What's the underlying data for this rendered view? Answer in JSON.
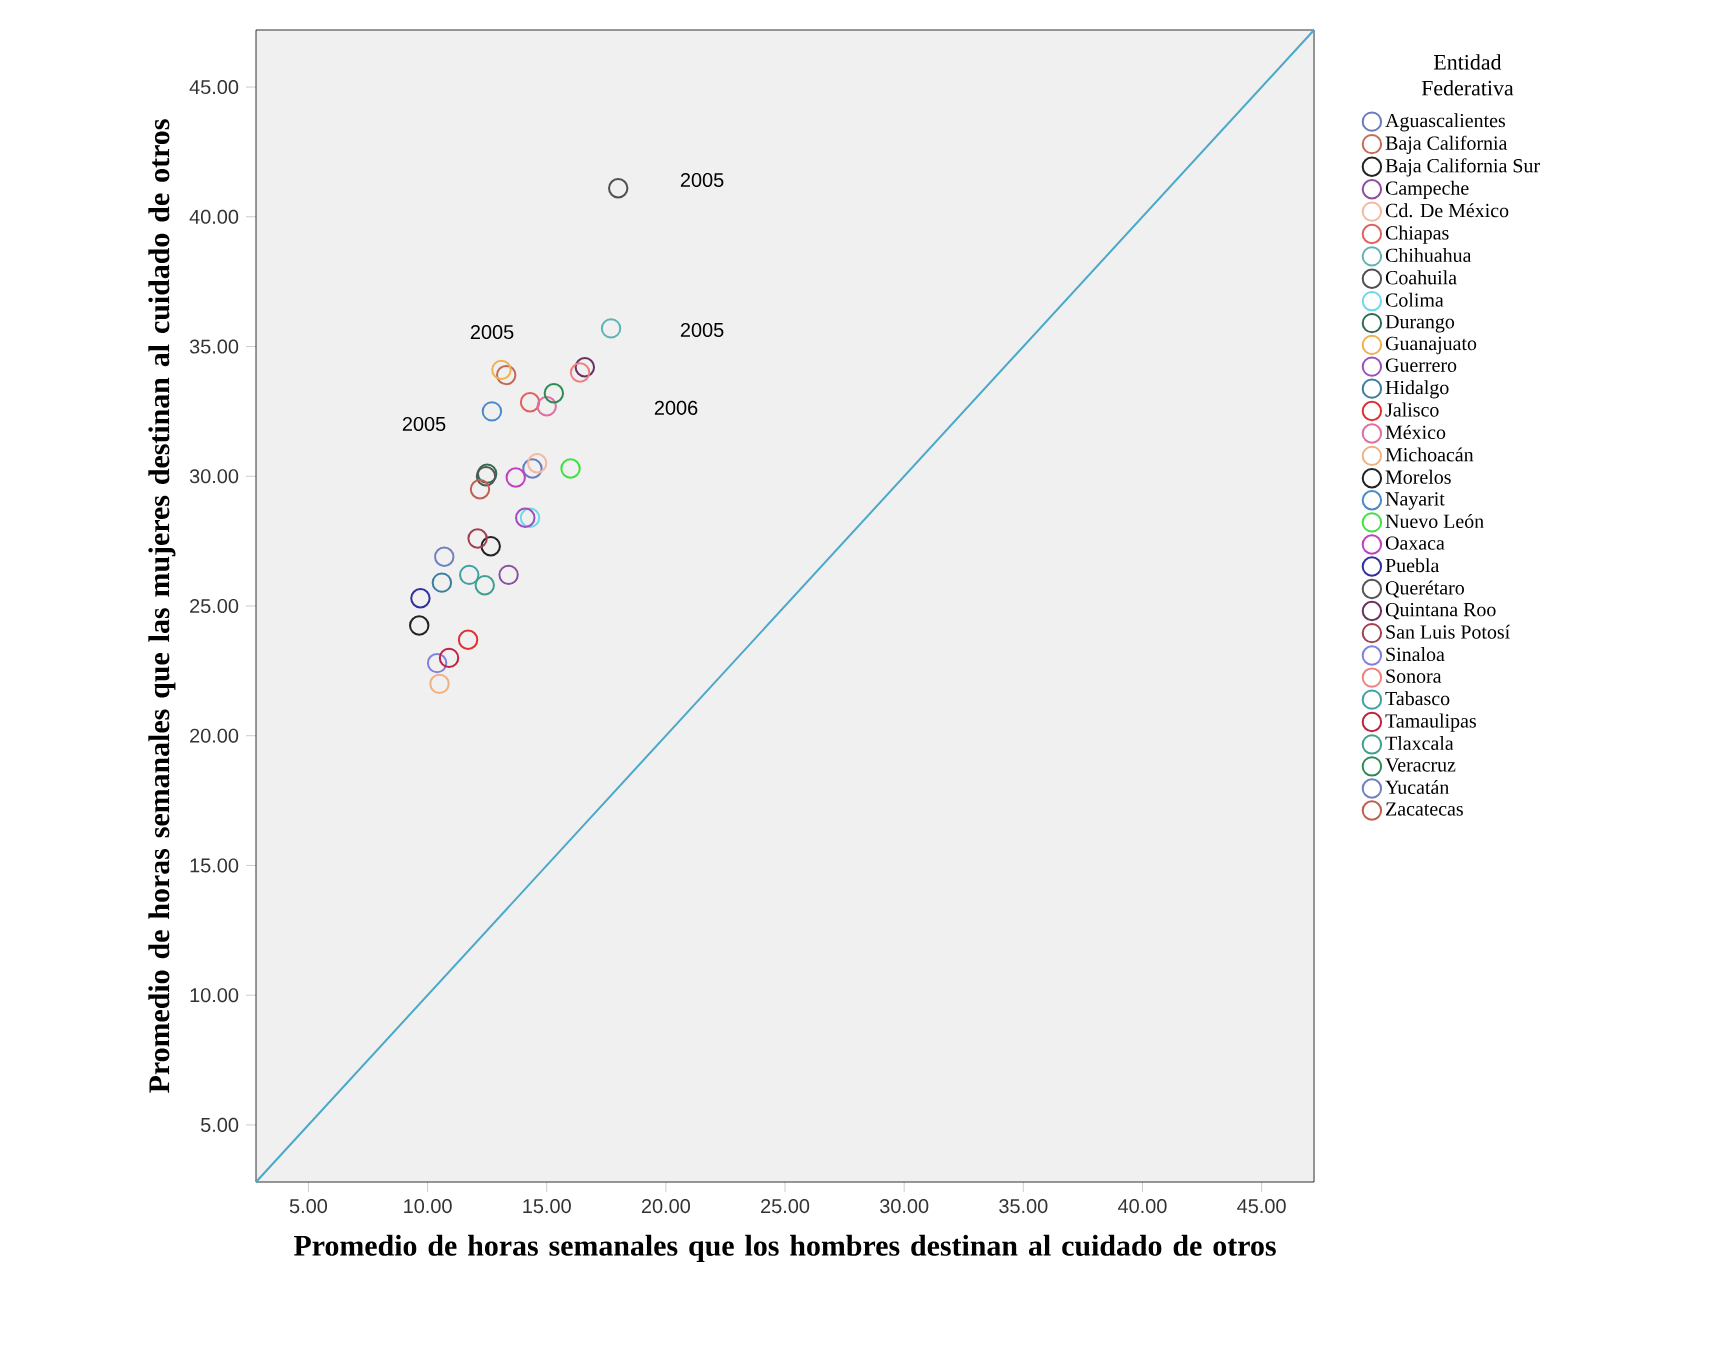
{
  "chart_data": {
    "type": "scatter",
    "xlabel": "Promedio de horas semanales que los hombres destinan al cuidado de otros",
    "ylabel": "Promedio de horas semanales que las mujeres destinan al cuidado de otros",
    "legend_title": "Entidad Federativa",
    "legend": "right",
    "marker": "circle",
    "xlim": [
      2.8,
      47.2
    ],
    "ylim": [
      2.8,
      47.2
    ],
    "xticks": [
      {
        "value": 5,
        "label": "5.00"
      },
      {
        "value": 10,
        "label": "10.00"
      },
      {
        "value": 15,
        "label": "15.00"
      },
      {
        "value": 20,
        "label": "20.00"
      },
      {
        "value": 25,
        "label": "25.00"
      },
      {
        "value": 30,
        "label": "30.00"
      },
      {
        "value": 35,
        "label": "35.00"
      },
      {
        "value": 40,
        "label": "40.00"
      },
      {
        "value": 45,
        "label": "45.00"
      }
    ],
    "yticks": [
      {
        "value": 5,
        "label": "5.00"
      },
      {
        "value": 10,
        "label": "10.00"
      },
      {
        "value": 15,
        "label": "15.00"
      },
      {
        "value": 20,
        "label": "20.00"
      },
      {
        "value": 25,
        "label": "25.00"
      },
      {
        "value": 30,
        "label": "30.00"
      },
      {
        "value": 35,
        "label": "35.00"
      },
      {
        "value": 40,
        "label": "40.00"
      },
      {
        "value": 45,
        "label": "45.00"
      }
    ],
    "annotations": [
      "2005",
      "2005",
      "2005",
      "2005",
      "2006"
    ],
    "series": [
      {
        "type": "line",
        "marker": "none",
        "color": "#4aa8c8",
        "x": [
          2.8,
          47.2
        ],
        "values": [
          2.8,
          47.2
        ]
      },
      {
        "name": "Aguascalientes",
        "color": "#6c7bc0",
        "x": [
          14.4
        ],
        "values": [
          30.3
        ]
      },
      {
        "name": "Baja California",
        "color": "#c46a55",
        "x": [
          13.3
        ],
        "values": [
          33.9
        ]
      },
      {
        "name": "Baja California Sur",
        "color": "#222222",
        "x": [
          9.65
        ],
        "values": [
          24.25
        ]
      },
      {
        "name": "Campeche",
        "color": "#8e4fa0",
        "x": [
          13.4
        ],
        "values": [
          26.2
        ]
      },
      {
        "name": "Cd. De México",
        "color": "#f4b8a0",
        "x": [
          14.6
        ],
        "values": [
          30.5
        ]
      },
      {
        "name": "Chiapas",
        "color": "#e06060",
        "x": [
          14.3
        ],
        "values": [
          32.85
        ]
      },
      {
        "name": "Chihuahua",
        "color": "#5fb3b3",
        "x": [
          17.7
        ],
        "values": [
          35.7
        ]
      },
      {
        "name": "Coahuila",
        "color": "#505050",
        "x": [
          18.0
        ],
        "values": [
          41.1
        ]
      },
      {
        "name": "Colima",
        "color": "#6fd8e8",
        "x": [
          14.3
        ],
        "values": [
          28.4
        ]
      },
      {
        "name": "Durango",
        "color": "#2e6b4f",
        "x": [
          12.5
        ],
        "values": [
          30.1
        ]
      },
      {
        "name": "Guanajuato",
        "color": "#f0b050",
        "x": [
          13.1
        ],
        "values": [
          34.1
        ]
      },
      {
        "name": "Guerrero",
        "color": "#9b4fc0",
        "x": [
          14.1
        ],
        "values": [
          28.4
        ]
      },
      {
        "name": "Hidalgo",
        "color": "#3d7e9e",
        "x": [
          10.6
        ],
        "values": [
          25.9
        ]
      },
      {
        "name": "Jalisco",
        "color": "#e03030",
        "x": [
          11.7
        ],
        "values": [
          23.7
        ]
      },
      {
        "name": "México",
        "color": "#e070a0",
        "x": [
          15.0
        ],
        "values": [
          32.7
        ]
      },
      {
        "name": "Michoacán",
        "color": "#f0b080",
        "x": [
          10.5
        ],
        "values": [
          22.0
        ]
      },
      {
        "name": "Morelos",
        "color": "#222222",
        "x": [
          12.65
        ],
        "values": [
          27.3
        ]
      },
      {
        "name": "Nayarit",
        "color": "#4a8ac8",
        "x": [
          12.7
        ],
        "values": [
          32.5
        ]
      },
      {
        "name": "Nuevo León",
        "color": "#40e040",
        "x": [
          16.0
        ],
        "values": [
          30.3
        ]
      },
      {
        "name": "Oaxaca",
        "color": "#c040c0",
        "x": [
          13.7
        ],
        "values": [
          29.95
        ]
      },
      {
        "name": "Puebla",
        "color": "#3030a0",
        "x": [
          9.7
        ],
        "values": [
          25.3
        ]
      },
      {
        "name": "Querétaro",
        "color": "#555555",
        "x": [
          12.45
        ],
        "values": [
          30.0
        ]
      },
      {
        "name": "Quintana Roo",
        "color": "#6a3060",
        "x": [
          16.6
        ],
        "values": [
          34.2
        ]
      },
      {
        "name": "San Luis Potosí",
        "color": "#a04050",
        "x": [
          12.1
        ],
        "values": [
          27.6
        ]
      },
      {
        "name": "Sinaloa",
        "color": "#8080e0",
        "x": [
          10.4
        ],
        "values": [
          22.8
        ]
      },
      {
        "name": "Sonora",
        "color": "#f08080",
        "x": [
          16.4
        ],
        "values": [
          34.0
        ]
      },
      {
        "name": "Tabasco",
        "color": "#40a0a0",
        "x": [
          11.75
        ],
        "values": [
          26.2
        ]
      },
      {
        "name": "Tamaulipas",
        "color": "#c02040",
        "x": [
          10.9
        ],
        "values": [
          23.0
        ]
      },
      {
        "name": "Tlaxcala",
        "color": "#40a090",
        "x": [
          12.4
        ],
        "values": [
          25.8
        ]
      },
      {
        "name": "Veracruz",
        "color": "#2e8b57",
        "x": [
          15.3
        ],
        "values": [
          33.2
        ]
      },
      {
        "name": "Yucatán",
        "color": "#7080c0",
        "x": [
          10.7
        ],
        "values": [
          26.9
        ]
      },
      {
        "name": "Zacatecas",
        "color": "#c06050",
        "x": [
          12.2
        ],
        "values": [
          29.5
        ]
      }
    ]
  }
}
